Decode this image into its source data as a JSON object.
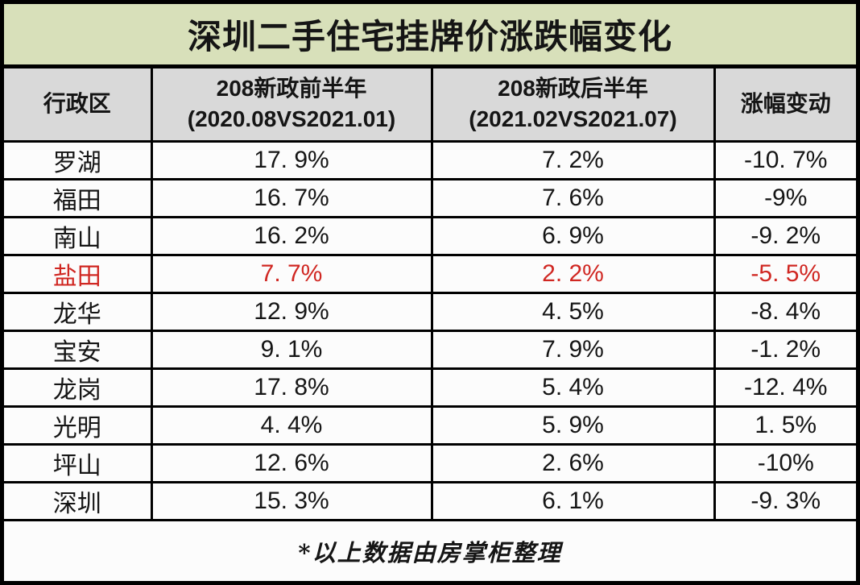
{
  "title": "深圳二手住宅挂牌价涨跌幅变化",
  "table": {
    "headers": {
      "district": "行政区",
      "before_line1": "208新政前半年",
      "before_line2": "(2020.08VS2021.01)",
      "after_line1": "208新政后半年",
      "after_line2": "(2021.02VS2021.07)",
      "change": "涨幅变动"
    },
    "rows": [
      {
        "district": "罗湖",
        "before": "17. 9%",
        "after": "7. 2%",
        "change": "-10. 7%"
      },
      {
        "district": "福田",
        "before": "16. 7%",
        "after": "7. 6%",
        "change": "-9%"
      },
      {
        "district": "南山",
        "before": "16. 2%",
        "after": "6. 9%",
        "change": "-9. 2%"
      },
      {
        "district": "盐田",
        "before": "7. 7%",
        "after": "2. 2%",
        "change": "-5. 5%"
      },
      {
        "district": "龙华",
        "before": "12. 9%",
        "after": "4. 5%",
        "change": "-8. 4%"
      },
      {
        "district": "宝安",
        "before": "9. 1%",
        "after": "7. 9%",
        "change": "-1. 2%"
      },
      {
        "district": "龙岗",
        "before": "17. 8%",
        "after": "5. 4%",
        "change": "-12. 4%"
      },
      {
        "district": "光明",
        "before": "4. 4%",
        "after": "5. 9%",
        "change": "1. 5%"
      },
      {
        "district": "坪山",
        "before": "12. 6%",
        "after": "2. 6%",
        "change": "-10%"
      },
      {
        "district": "深圳",
        "before": "15. 3%",
        "after": "6. 1%",
        "change": "-9. 3%"
      }
    ]
  },
  "footer": {
    "note": "*以上数据由房掌柜整理"
  },
  "colors": {
    "title-bg": "#d8e0ba",
    "header-bg": "#d9d9d9",
    "cell-bg": "#fcfcfc",
    "border": "#000000",
    "highlight-red": "#d02722",
    "text": "#151515"
  },
  "chart_data": {
    "type": "table",
    "title": "深圳二手住宅挂牌价涨跌幅变化",
    "columns": [
      "行政区",
      "208新政前半年 (2020.08VS2021.01)",
      "208新政后半年 (2021.02VS2021.07)",
      "涨幅变动"
    ],
    "rows": [
      {
        "district": "罗湖",
        "before_pct": 17.9,
        "after_pct": 7.2,
        "change_pct": -10.7
      },
      {
        "district": "福田",
        "before_pct": 16.7,
        "after_pct": 7.6,
        "change_pct": -9.0
      },
      {
        "district": "南山",
        "before_pct": 16.2,
        "after_pct": 6.9,
        "change_pct": -9.2
      },
      {
        "district": "盐田",
        "before_pct": 7.7,
        "after_pct": 2.2,
        "change_pct": -5.5
      },
      {
        "district": "龙华",
        "before_pct": 12.9,
        "after_pct": 4.5,
        "change_pct": -8.4
      },
      {
        "district": "宝安",
        "before_pct": 9.1,
        "after_pct": 7.9,
        "change_pct": -1.2
      },
      {
        "district": "龙岗",
        "before_pct": 17.8,
        "after_pct": 5.4,
        "change_pct": -12.4
      },
      {
        "district": "光明",
        "before_pct": 4.4,
        "after_pct": 5.9,
        "change_pct": 1.5
      },
      {
        "district": "坪山",
        "before_pct": 12.6,
        "after_pct": 2.6,
        "change_pct": -10.0
      },
      {
        "district": "深圳",
        "before_pct": 15.3,
        "after_pct": 6.1,
        "change_pct": -9.3
      }
    ],
    "highlighted_row": "盐田",
    "note": "*以上数据由房掌柜整理"
  }
}
